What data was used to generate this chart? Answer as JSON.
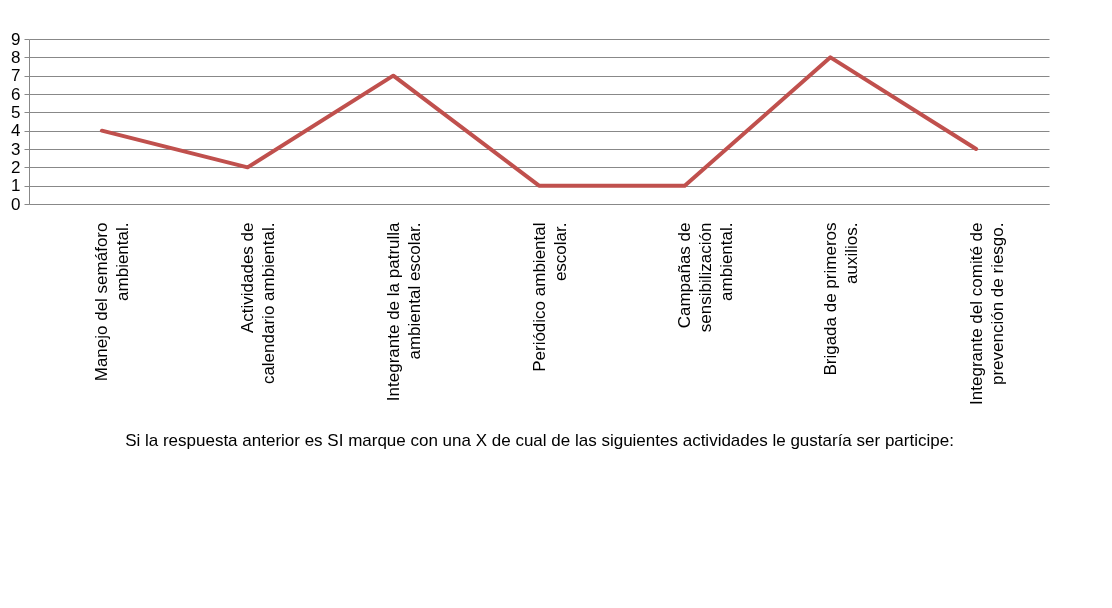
{
  "chart_data": {
    "type": "line",
    "categories": [
      "Manejo del semáforo\nambiental.",
      "Actividades de\ncalendario ambiental.",
      "Integrante de la patrulla\nambiental escolar.",
      "Periódico ambiental\nescolar.",
      "Campañas de\nsensibilización\nambiental.",
      "Brigada de primeros\nauxilios.",
      "Integrante del comité de\nprevención de riesgo."
    ],
    "series": [
      {
        "color": "#c0504d",
        "values": [
          4,
          2,
          7,
          1,
          1,
          8,
          3
        ]
      }
    ],
    "xlabel": "Si la respuesta anterior es SI marque con una X de cual de las siguientes actividades le gustaría ser participe:",
    "ylim": [
      0,
      9
    ],
    "yticks": [
      0,
      1,
      2,
      3,
      4,
      5,
      6,
      7,
      8,
      9
    ],
    "grid": "y",
    "marker": "none",
    "line_style": "solid"
  }
}
